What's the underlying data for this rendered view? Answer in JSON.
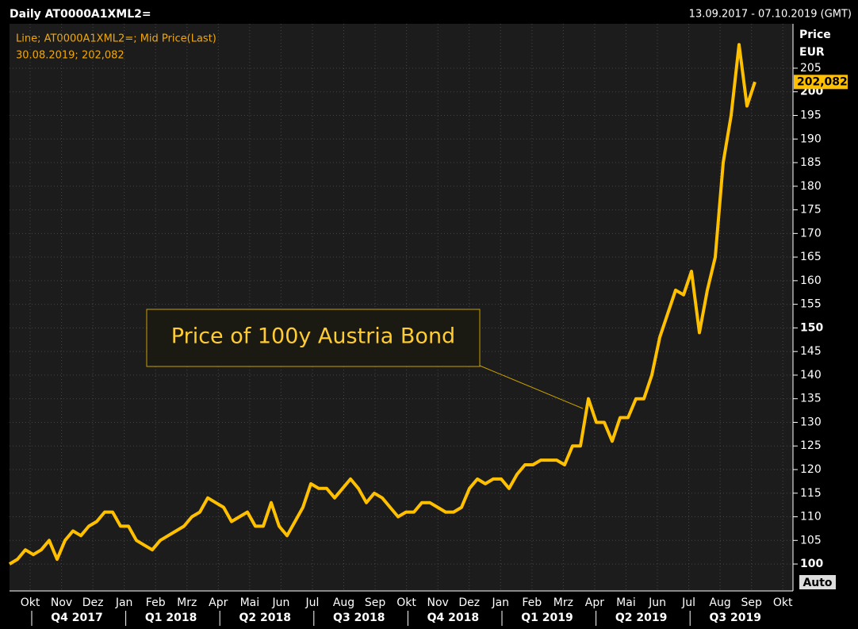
{
  "chart_data": {
    "type": "line",
    "title": "Daily AT0000A1XML2=",
    "date_range": "13.09.2017 - 07.10.2019 (GMT)",
    "legend_line": "Line; AT0000A1XML2=; Mid Price(Last)",
    "legend_last": "30.08.2019; 202,082",
    "axis_title": "Price",
    "axis_unit": "EUR",
    "axis_mode": "Auto",
    "annotation": "Price of 100y Austria Bond",
    "last_price": {
      "value": 202.082,
      "label": "202,082"
    },
    "color": "#ffc000",
    "grid": true,
    "month_labels": [
      "Okt",
      "Nov",
      "Dez",
      "Jan",
      "Feb",
      "Mrz",
      "Apr",
      "Mai",
      "Jun",
      "Jul",
      "Aug",
      "Sep",
      "Okt",
      "Nov",
      "Dez",
      "Jan",
      "Feb",
      "Mrz",
      "Apr",
      "Mai",
      "Jun",
      "Jul",
      "Aug",
      "Sep",
      "Okt"
    ],
    "quarter_labels": [
      "Q4 2017",
      "Q1 2018",
      "Q2 2018",
      "Q3 2018",
      "Q4 2018",
      "Q1 2019",
      "Q2 2019",
      "Q3 2019"
    ],
    "ylim": [
      94.3,
      214.4
    ],
    "yticks": [
      100,
      105,
      110,
      115,
      120,
      125,
      130,
      135,
      140,
      145,
      150,
      155,
      160,
      165,
      170,
      175,
      180,
      185,
      190,
      195,
      200,
      205
    ],
    "values": [
      100,
      101,
      103,
      102,
      103,
      105,
      101,
      105,
      107,
      106,
      108,
      109,
      111,
      111,
      108,
      108,
      105,
      104,
      103,
      105,
      106,
      107,
      108,
      110,
      111,
      114,
      113,
      112,
      109,
      110,
      111,
      108,
      108,
      113,
      108,
      106,
      109,
      112,
      117,
      116,
      116,
      114,
      116,
      118,
      116,
      113,
      115,
      114,
      112,
      110,
      111,
      111,
      113,
      113,
      112,
      111,
      111,
      112,
      116,
      118,
      117,
      118,
      118,
      116,
      119,
      121,
      121,
      122,
      122,
      122,
      121,
      125,
      125,
      135,
      130,
      130,
      126,
      131,
      131,
      135,
      135,
      140,
      148,
      153,
      158,
      157,
      162,
      149,
      158,
      165,
      185,
      195,
      210,
      197,
      202.082
    ]
  }
}
